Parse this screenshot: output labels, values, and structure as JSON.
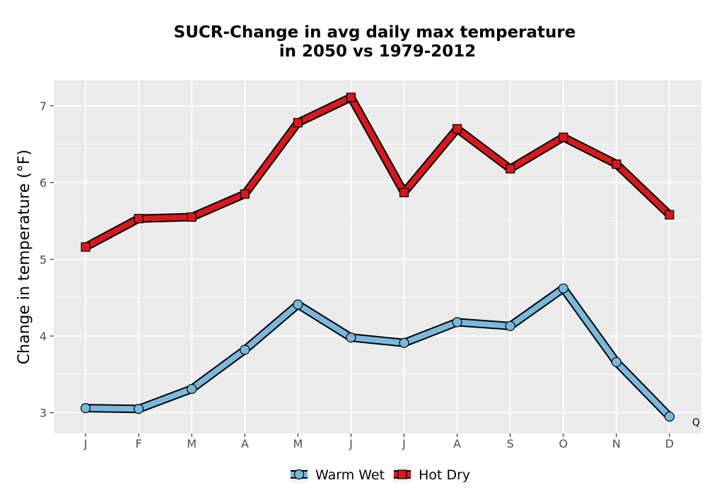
{
  "chart_data": {
    "type": "line",
    "title": "SUCR-Change in avg daily max temperature",
    "subtitle": "in 2050 vs 1979-2012",
    "xlabel": "",
    "ylabel": "Change in temperature (°F)",
    "categories": [
      "J",
      "F",
      "M",
      "A",
      "M",
      "J",
      "J",
      "A",
      "S",
      "O",
      "N",
      "D"
    ],
    "ylim": [
      2.73,
      7.33
    ],
    "yticks": [
      "3",
      "4",
      "5",
      "6",
      "7"
    ],
    "grid": true,
    "legend_position": "bottom",
    "series": [
      {
        "name": "Warm Wet",
        "marker": "circle",
        "color": "#7ab8de",
        "values": [
          3.06,
          3.05,
          3.31,
          3.82,
          4.41,
          3.98,
          3.91,
          4.18,
          4.13,
          4.62,
          3.66,
          2.95
        ]
      },
      {
        "name": "Hot Dry",
        "marker": "square",
        "color": "#d7191c",
        "values": [
          5.16,
          5.53,
          5.55,
          5.85,
          6.78,
          7.11,
          5.87,
          6.7,
          6.18,
          6.59,
          6.24,
          5.58
        ]
      }
    ],
    "annotation": "Q",
    "colors": {
      "panel_bg": "#ebebeb",
      "grid": "#ffffff",
      "outline": "#000000"
    }
  }
}
